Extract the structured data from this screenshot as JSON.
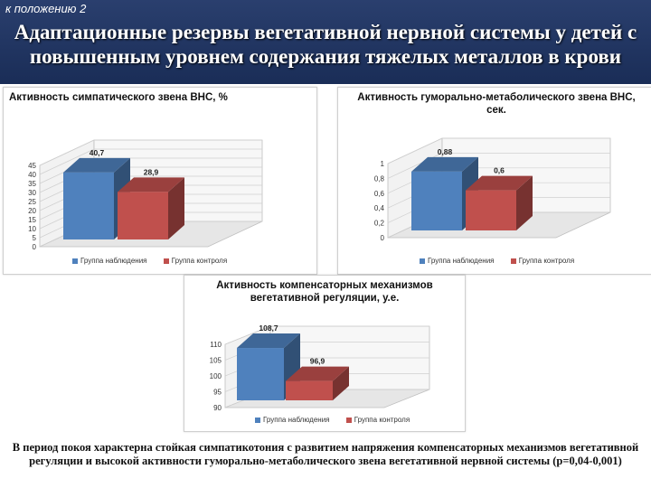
{
  "header": {
    "appendix": "к положению 2",
    "title": "Адаптационные резервы вегетативной нервной системы у детей с повышенным уровнем содержания тяжелых металлов в крови"
  },
  "colors": {
    "observation": "#4f81bd",
    "control": "#c0504d"
  },
  "chart_data": [
    {
      "type": "bar",
      "title": "Активность симпатического звена ВНС, %",
      "categories": [
        "Группа наблюдения",
        "Группа контроля"
      ],
      "values": [
        40.7,
        28.9
      ],
      "labels": [
        "40,7",
        "28,9"
      ],
      "ylim": [
        0,
        45
      ],
      "yticks": [
        "0",
        "5",
        "10",
        "15",
        "20",
        "25",
        "30",
        "35",
        "40",
        "45"
      ],
      "legend_position": "bottom"
    },
    {
      "type": "bar",
      "title": "Активность гуморально-метаболического звена ВНС, сек.",
      "categories": [
        "Группа наблюдения",
        "Группа контроля"
      ],
      "values": [
        0.88,
        0.6
      ],
      "labels": [
        "0,88",
        "0,6"
      ],
      "ylim": [
        0,
        1
      ],
      "yticks": [
        "0",
        "0,2",
        "0,4",
        "0,6",
        "0,8",
        "1"
      ],
      "legend_position": "bottom"
    },
    {
      "type": "bar",
      "title": "Активность компенсаторных механизмов вегетативной регуляции, у.е.",
      "categories": [
        "Группа наблюдения",
        "Группа контроля"
      ],
      "values": [
        108.7,
        96.9
      ],
      "labels": [
        "108,7",
        "96,9"
      ],
      "ylim": [
        90,
        110
      ],
      "yticks": [
        "90",
        "95",
        "100",
        "105",
        "110"
      ],
      "legend_position": "bottom"
    }
  ],
  "conclusion": "В период покоя характерна стойкая симпатикотония с развитием напряжения компенсаторных механизмов вегетативной регуляции и высокой активности гуморально-метаболического звена вегетативной нервной системы (p=0,04-0,001)"
}
